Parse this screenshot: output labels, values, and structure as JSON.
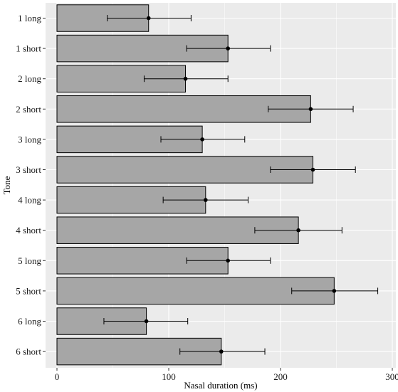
{
  "chart_data": {
    "type": "bar",
    "orientation": "horizontal",
    "xlabel": "Nasal duration (ms)",
    "ylabel": "Tone",
    "xlim": [
      0,
      300
    ],
    "x_ticks": [
      0,
      100,
      200,
      300
    ],
    "grid": true,
    "categories": [
      "1 long",
      "1 short",
      "2 long",
      "2 short",
      "3 long",
      "3 short",
      "4 long",
      "4 short",
      "5 long",
      "5 short",
      "6 long",
      "6 short"
    ],
    "values": [
      82,
      153,
      115,
      227,
      130,
      229,
      133,
      216,
      153,
      248,
      80,
      147
    ],
    "error_low": [
      45,
      116,
      78,
      189,
      93,
      191,
      95,
      177,
      116,
      210,
      42,
      110
    ],
    "error_high": [
      120,
      191,
      153,
      265,
      168,
      267,
      171,
      255,
      191,
      287,
      117,
      186
    ],
    "colors": {
      "panel": "#ebebeb",
      "grid": "#ffffff",
      "bar_fill": "#a6a6a6",
      "bar_stroke": "#000000",
      "error": "#000000"
    }
  }
}
